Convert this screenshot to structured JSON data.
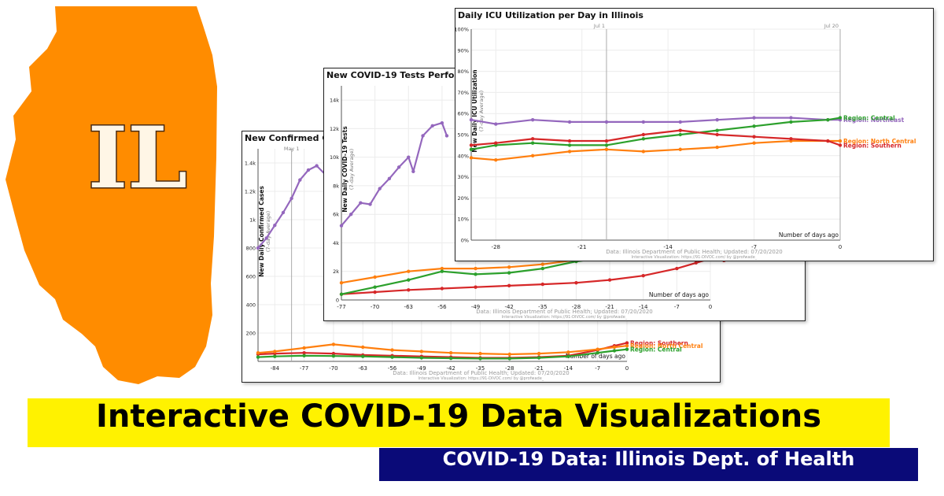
{
  "brand": {
    "state_abbrev": "IL",
    "state_color": "#ff8c00",
    "headline": "Interactive COVID-19 Data Visualizations",
    "headline_bg": "#fff200",
    "subheadline": "COVID-19 Data: Illinois Dept. of Health",
    "subheadline_bg": "#0a0a78",
    "state_icon": "illinois-map-icon"
  },
  "colors": {
    "Central": "#2ca02c",
    "Northeast": "#9467bd",
    "North Central": "#ff7f0e",
    "Southern": "#d62728"
  },
  "chart_data": [
    {
      "type": "line",
      "title": "New Confirmed CO",
      "ylabel": "New Daily Confirmed Cases",
      "ylabel_sub": "(7-day Average)",
      "xlabel": "Number of days ago",
      "xlim": [
        -88,
        0
      ],
      "ylim": [
        0,
        1500
      ],
      "x_ticks": [
        "-84",
        "-77",
        "-70",
        "-63",
        "-56",
        "-49",
        "-42",
        "-35",
        "-28",
        "-21",
        "-14",
        "-7",
        "0"
      ],
      "y_ticks": [
        "200",
        "400",
        "600",
        "800",
        "1k",
        "1.2k",
        "1.4k"
      ],
      "marker_label": "May 1",
      "marker_x": -80,
      "source": "Data: Illinois Department of Public Health; Updated: 07/20/2020",
      "credit": "Interactive Visualization: https://91-DIVOC.com/ by @profwade_",
      "series": [
        {
          "name": "",
          "region": "Northeast",
          "x": [
            -88,
            -86,
            -84,
            -82,
            -80,
            -78,
            -76,
            -74,
            -72,
            -70,
            -68
          ],
          "values": [
            800,
            870,
            960,
            1050,
            1150,
            1280,
            1350,
            1380,
            1320,
            1200,
            1280
          ]
        },
        {
          "name": "Region: Southern",
          "region": "Southern",
          "x": [
            -88,
            -84,
            -77,
            -70,
            -63,
            -56,
            -49,
            -42,
            -35,
            -28,
            -21,
            -14,
            -7,
            -3,
            0
          ],
          "values": [
            50,
            55,
            60,
            55,
            45,
            40,
            35,
            30,
            25,
            25,
            30,
            40,
            80,
            110,
            130
          ]
        },
        {
          "name": "Region: North Central",
          "region": "North Central",
          "x": [
            -88,
            -84,
            -77,
            -70,
            -63,
            -56,
            -49,
            -42,
            -35,
            -28,
            -21,
            -14,
            -7,
            -3,
            0
          ],
          "values": [
            60,
            70,
            95,
            120,
            100,
            80,
            70,
            60,
            55,
            50,
            55,
            65,
            85,
            100,
            110
          ]
        },
        {
          "name": "Region: Central",
          "region": "Central",
          "x": [
            -88,
            -84,
            -77,
            -70,
            -63,
            -56,
            -49,
            -42,
            -35,
            -28,
            -21,
            -14,
            -7,
            -3,
            0
          ],
          "values": [
            30,
            35,
            40,
            38,
            35,
            30,
            25,
            22,
            20,
            20,
            25,
            35,
            60,
            75,
            85
          ]
        }
      ]
    },
    {
      "type": "line",
      "title": "New COVID-19 Tests Performe",
      "ylabel": "New Daily COVID-19 Tests",
      "ylabel_sub": "(7-day Average)",
      "xlabel": "Number of days ago",
      "xlim": [
        -77,
        0
      ],
      "ylim": [
        0,
        15000
      ],
      "x_ticks": [
        "-77",
        "-70",
        "-63",
        "-56",
        "-49",
        "-42",
        "-35",
        "-28",
        "-21",
        "-14",
        "-7",
        "0"
      ],
      "y_ticks": [
        "0",
        "2k",
        "4k",
        "6k",
        "8k",
        "10k",
        "12k",
        "14k"
      ],
      "source": "Data: Illinois Department of Public Health; Updated: 07/20/2020",
      "credit": "Interactive Visualization: https://91-DIVOC.com/ by @profwade_",
      "series": [
        {
          "name": "",
          "region": "Northeast",
          "x": [
            -77,
            -75,
            -73,
            -71,
            -69,
            -67,
            -65,
            -63,
            -62,
            -60,
            -58,
            -56,
            -55
          ],
          "values": [
            5200,
            6000,
            6800,
            6700,
            7800,
            8500,
            9300,
            10000,
            9000,
            11500,
            12200,
            12400,
            11500
          ]
        },
        {
          "name": "Region: Southern",
          "region": "Southern",
          "x": [
            -77,
            -70,
            -63,
            -56,
            -49,
            -42,
            -35,
            -28,
            -21,
            -14,
            -7,
            -3,
            0
          ],
          "values": [
            400,
            550,
            700,
            800,
            900,
            1000,
            1100,
            1200,
            1400,
            1700,
            2200,
            2600,
            2900
          ]
        },
        {
          "name": "",
          "region": "North Central",
          "x": [
            -77,
            -70,
            -63,
            -56,
            -49,
            -42,
            -35,
            -28,
            -21,
            -14,
            -7,
            0
          ],
          "values": [
            1200,
            1600,
            2000,
            2200,
            2200,
            2300,
            2500,
            2800,
            3000,
            3200,
            3400,
            3500
          ]
        },
        {
          "name": "",
          "region": "Central",
          "x": [
            -77,
            -70,
            -63,
            -56,
            -49,
            -42,
            -35,
            -28,
            -21,
            -14,
            -7,
            0
          ],
          "values": [
            400,
            900,
            1400,
            2000,
            1800,
            1900,
            2200,
            2700,
            3000,
            3300,
            3500,
            3700
          ]
        }
      ]
    },
    {
      "type": "line",
      "title": "Daily ICU Utilization per Day in Illinois",
      "ylabel": "New Daily ICU Utilization",
      "ylabel_sub": "(7-day Average)",
      "xlabel": "Number of days ago",
      "xlim": [
        -30,
        0
      ],
      "ylim": [
        0,
        100
      ],
      "x_ticks": [
        "-28",
        "-21",
        "-14",
        "-7",
        "0"
      ],
      "y_ticks": [
        "0%",
        "10%",
        "20%",
        "30%",
        "40%",
        "50%",
        "60%",
        "70%",
        "80%",
        "90%",
        "100%"
      ],
      "marker_labels": [
        "Jul 1",
        "Jul 20"
      ],
      "marker_x": [
        -19,
        0
      ],
      "source": "Data: Illinois Department of Public Health; Updated: 07/20/2020",
      "credit": "Interactive Visualization: https://91-DIVOC.com/ by @profwade_",
      "series": [
        {
          "name": "Region: Northeast",
          "region": "Northeast",
          "x": [
            -30,
            -28,
            -25,
            -22,
            -19,
            -16,
            -13,
            -10,
            -7,
            -4,
            -1,
            0
          ],
          "values": [
            57,
            55,
            57,
            56,
            56,
            56,
            56,
            57,
            58,
            58,
            57,
            57
          ]
        },
        {
          "name": "Region: Central",
          "region": "Central",
          "x": [
            -30,
            -28,
            -25,
            -22,
            -19,
            -16,
            -13,
            -10,
            -7,
            -4,
            -1,
            0
          ],
          "values": [
            43,
            45,
            46,
            45,
            45,
            48,
            50,
            52,
            54,
            56,
            57,
            58
          ]
        },
        {
          "name": "Region: North Central",
          "region": "North Central",
          "x": [
            -30,
            -28,
            -25,
            -22,
            -19,
            -16,
            -13,
            -10,
            -7,
            -4,
            -1,
            0
          ],
          "values": [
            39,
            38,
            40,
            42,
            43,
            42,
            43,
            44,
            46,
            47,
            47,
            47
          ]
        },
        {
          "name": "Region: Southern",
          "region": "Southern",
          "x": [
            -30,
            -28,
            -25,
            -22,
            -19,
            -16,
            -13,
            -10,
            -7,
            -4,
            -1,
            0
          ],
          "values": [
            45,
            46,
            48,
            47,
            47,
            50,
            52,
            50,
            49,
            48,
            47,
            45
          ]
        }
      ]
    }
  ]
}
